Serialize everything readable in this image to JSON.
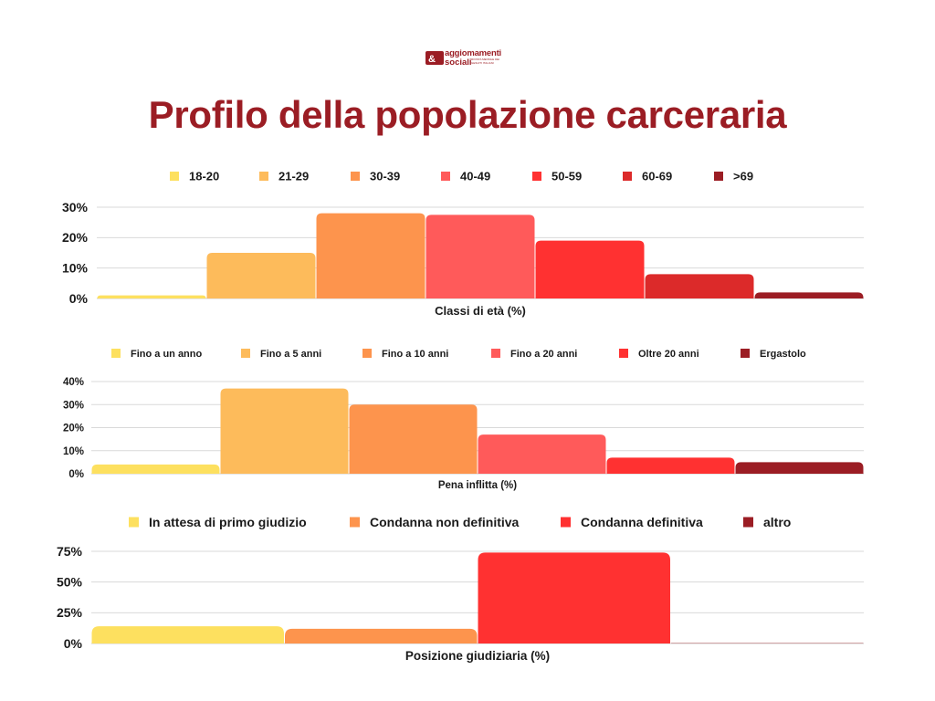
{
  "logo": {
    "line1": "aggiomamenti",
    "line2": "sociali",
    "tagline": "RIVISTA MENSILE DEI GESUITI ITALIANI"
  },
  "title": "Profilo della popolazione carceraria",
  "chart_data": [
    {
      "type": "bar",
      "xlabel": "Classi di età (%)",
      "ylabel": "",
      "categories": [
        "18-20",
        "21-29",
        "30-39",
        "40-49",
        "50-59",
        "60-69",
        ">69"
      ],
      "values": [
        1,
        15,
        28,
        27.5,
        19,
        8,
        2
      ],
      "colors": [
        "#fde05f",
        "#fdbb5b",
        "#fd944d",
        "#ff5a5a",
        "#ff3131",
        "#dc2a2a",
        "#9b1d24"
      ],
      "ylim": [
        0,
        30
      ],
      "yticks": [
        0,
        10,
        20,
        30
      ],
      "ytick_labels": [
        "0%",
        "10%",
        "20%",
        "30%"
      ],
      "grid": true,
      "legend": "top"
    },
    {
      "type": "bar",
      "xlabel": "Pena inflitta (%)",
      "ylabel": "",
      "categories": [
        "Fino a un anno",
        "Fino a 5 anni",
        "Fino a 10 anni",
        "Fino a 20 anni",
        "Oltre 20 anni",
        "Ergastolo"
      ],
      "values": [
        4,
        37,
        30,
        17,
        7,
        5
      ],
      "colors": [
        "#fde05f",
        "#fdbb5b",
        "#fd944d",
        "#ff5a5a",
        "#ff3131",
        "#9b1d24"
      ],
      "ylim": [
        0,
        40
      ],
      "yticks": [
        0,
        10,
        20,
        30,
        40
      ],
      "ytick_labels": [
        "0%",
        "10%",
        "20%",
        "30%",
        "40%"
      ],
      "grid": true,
      "legend": "top"
    },
    {
      "type": "bar",
      "xlabel": "Posizione giudiziaria (%)",
      "ylabel": "",
      "categories": [
        "In attesa di primo giudizio",
        "Condanna non definitiva",
        "Condanna definitiva",
        "altro"
      ],
      "values": [
        14,
        12,
        74,
        0.3
      ],
      "colors": [
        "#fde05f",
        "#fd944d",
        "#ff3131",
        "#9b1d24"
      ],
      "ylim": [
        0,
        75
      ],
      "yticks": [
        0,
        25,
        50,
        75
      ],
      "ytick_labels": [
        "0%",
        "25%",
        "50%",
        "75%"
      ],
      "grid": true,
      "legend": "top"
    }
  ]
}
